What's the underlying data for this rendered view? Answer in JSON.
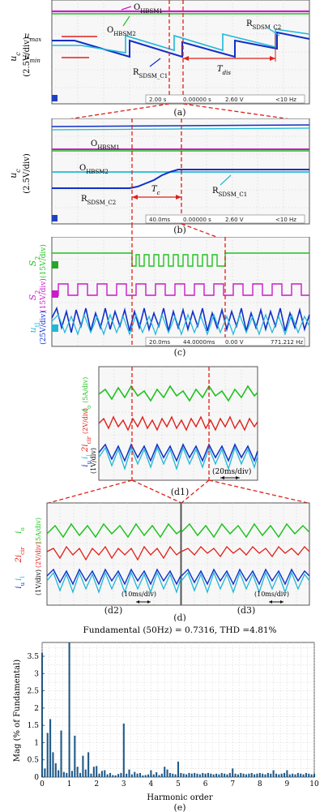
{
  "panel_a": {
    "ylabel_main": "u",
    "ylabel_sub": "c",
    "ylabel_unit": "(2.5V/div)",
    "annotations": {
      "o_hbsm1": "O",
      "o_hbsm1_sub": "HBSM1",
      "o_hbsm2": "O",
      "o_hbsm2_sub": "HBSM2",
      "r_sdsm_c2": "R",
      "r_sdsm_c2_sub": "SDSM_C2",
      "r_sdsm_c1": "R",
      "r_sdsm_c1_sub": "SDSM_C1",
      "umax": "u",
      "umax_sub": "max",
      "umin": "u",
      "umin_sub": "min",
      "tdis": "T",
      "tdis_sub": "dis"
    },
    "readout": {
      "time": "2.00 s",
      "pos": "0.00000 s",
      "trig": "2.60 V",
      "freq": "<10 Hz"
    },
    "caption": "(a)"
  },
  "panel_b": {
    "ylabel_main": "u",
    "ylabel_sub": "c",
    "ylabel_unit": "(2.5V/div)",
    "annotations": {
      "o_hbsm1": "O",
      "o_hbsm1_sub": "HBSM1",
      "o_hbsm2": "O",
      "o_hbsm2_sub": "HBSM2",
      "r_sdsm_c2": "R",
      "r_sdsm_c2_sub": "SDSM_C2",
      "r_sdsm_c1": "R",
      "r_sdsm_c1_sub": "SDSM_C1",
      "tc": "T",
      "tc_sub": "c"
    },
    "readout": {
      "time": "40.0ms",
      "pos": "0.00000 s",
      "trig": "2.60 V",
      "freq": "<10 Hz"
    },
    "caption": "(b)"
  },
  "panel_c": {
    "labels": {
      "s2_sub_main": "S",
      "s2_sub_sub": "2",
      "s2_sub_unit": "(15V/div)",
      "s2_main": "S",
      "s2_main_sub": "2",
      "s2_main_unit": "(15V/div)",
      "ul_main": "u",
      "ul_sub": "tl",
      "ul_unit": "(25V/div)"
    },
    "readout": {
      "time": "20.0ms",
      "pos": "44.0000ms",
      "trig": "0.00 V",
      "freq": "771.212 Hz"
    },
    "caption": "(c)"
  },
  "panel_d1": {
    "labels": {
      "io": "i",
      "io_sub": "o",
      "io_unit": "(5A/div)",
      "icir": "2i",
      "icir_sub": "cir",
      "icir_unit": "(2V/div)",
      "iu": "i",
      "iu_sub": "u",
      "il": "i",
      "il_sub": "l",
      "il_unit": "(1V/div)"
    },
    "timescale": "(20ms/div)",
    "caption": "(d1)"
  },
  "panel_d2": {
    "timescale": "(10ms/div)",
    "caption": "(d2)"
  },
  "panel_d3": {
    "timescale": "(10ms/div)",
    "caption": "(d3)"
  },
  "panel_d_caption": "(d)",
  "panel_e": {
    "caption": "(e)",
    "chart_data": {
      "type": "bar",
      "title": "Fundamental (50Hz) = 0.7316, THD =4.81%",
      "xlabel": "Harmonic order",
      "ylabel": "Mag (% of Fundamental)",
      "xlim": [
        0,
        10
      ],
      "ylim": [
        0,
        3.9
      ],
      "xticks": [
        0,
        1,
        2,
        3,
        4,
        5,
        6,
        7,
        8,
        9,
        10
      ],
      "yticks": [
        0,
        0.5,
        1,
        1.5,
        2,
        2.5,
        3,
        3.5
      ],
      "bar_width": 0.1,
      "x": [
        0,
        0.1,
        0.2,
        0.3,
        0.4,
        0.5,
        0.6,
        0.7,
        0.8,
        0.9,
        1.0,
        1.1,
        1.2,
        1.3,
        1.4,
        1.5,
        1.6,
        1.7,
        1.8,
        1.9,
        2.0,
        2.1,
        2.2,
        2.3,
        2.4,
        2.5,
        2.6,
        2.7,
        2.8,
        2.9,
        3.0,
        3.1,
        3.2,
        3.3,
        3.4,
        3.5,
        3.6,
        3.7,
        3.8,
        3.9,
        4.0,
        4.1,
        4.2,
        4.3,
        4.4,
        4.5,
        4.6,
        4.7,
        4.8,
        4.9,
        5.0,
        5.1,
        5.2,
        5.3,
        5.4,
        5.5,
        5.6,
        5.7,
        5.8,
        5.9,
        6.0,
        6.1,
        6.2,
        6.3,
        6.4,
        6.5,
        6.6,
        6.7,
        6.8,
        6.9,
        7.0,
        7.1,
        7.2,
        7.3,
        7.4,
        7.5,
        7.6,
        7.7,
        7.8,
        7.9,
        8.0,
        8.1,
        8.2,
        8.3,
        8.4,
        8.5,
        8.6,
        8.7,
        8.8,
        8.9,
        9.0,
        9.1,
        9.2,
        9.3,
        9.4,
        9.5,
        9.6,
        9.7,
        9.8,
        9.9,
        10.0
      ],
      "values": [
        3.6,
        0.25,
        1.28,
        1.68,
        0.72,
        0.4,
        0.2,
        1.35,
        0.15,
        0.12,
        3.9,
        0.18,
        1.2,
        0.3,
        0.12,
        0.62,
        0.22,
        0.72,
        0.1,
        0.3,
        0.32,
        0.1,
        0.18,
        0.2,
        0.08,
        0.12,
        0.06,
        0.05,
        0.09,
        0.12,
        1.55,
        0.1,
        0.22,
        0.08,
        0.15,
        0.1,
        0.12,
        0.05,
        0.06,
        0.08,
        0.2,
        0.08,
        0.14,
        0.06,
        0.1,
        0.3,
        0.22,
        0.12,
        0.1,
        0.08,
        0.45,
        0.12,
        0.1,
        0.08,
        0.12,
        0.1,
        0.12,
        0.1,
        0.08,
        0.12,
        0.1,
        0.12,
        0.1,
        0.08,
        0.1,
        0.08,
        0.12,
        0.1,
        0.08,
        0.12,
        0.25,
        0.1,
        0.08,
        0.12,
        0.1,
        0.08,
        0.1,
        0.12,
        0.08,
        0.1,
        0.12,
        0.1,
        0.08,
        0.12,
        0.1,
        0.2,
        0.1,
        0.08,
        0.1,
        0.12,
        0.2,
        0.08,
        0.1,
        0.08,
        0.12,
        0.1,
        0.08,
        0.12,
        0.1,
        0.08,
        0.1
      ],
      "bar_color": "#1f5a8a",
      "grid": true
    }
  },
  "colors": {
    "green": "#1fc21f",
    "magenta": "#c81cc8",
    "blue": "#1030c8",
    "cyan": "#1fb8d8",
    "red": "#e0201a",
    "barblue": "#1f5a8a"
  }
}
